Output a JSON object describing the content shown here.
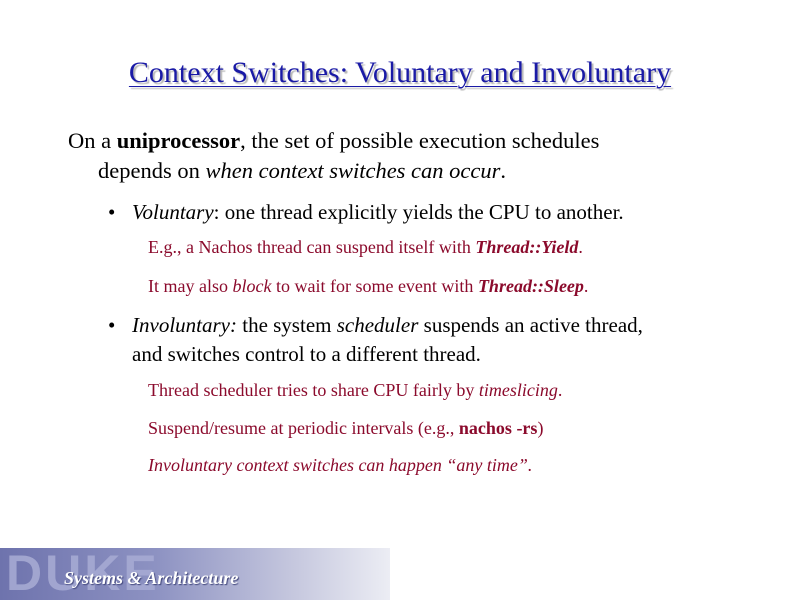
{
  "slide": {
    "title": "Context Switches: Voluntary and Involuntary",
    "intro": {
      "p1": "On a ",
      "p2": "uniprocessor",
      "p3": ", the set of possible execution schedules",
      "p4": "depends on ",
      "p5": "when context switches can occur",
      "p6": "."
    },
    "bullet1": {
      "marker": "•",
      "em": "Voluntary",
      "rest": ": one thread explicitly yields the CPU to another.",
      "sub1": {
        "a": "E.g., a Nachos thread can suspend itself with ",
        "b": "Thread::Yield",
        "c": "."
      },
      "sub2": {
        "a": "It  may also ",
        "b": "block",
        "c": " to wait for some event with ",
        "d": "Thread::Sleep",
        "e": "."
      }
    },
    "bullet2": {
      "marker": "•",
      "em": "Involuntary:",
      "t1": " the system ",
      "em2": "scheduler",
      "t2": " suspends an active thread,",
      "t3": "and switches control to a different thread.",
      "sub1": {
        "a": "Thread scheduler tries to share CPU fairly by ",
        "b": "timeslicing",
        "c": "."
      },
      "sub2": {
        "a": "Suspend/resume at periodic intervals (e.g., ",
        "b": "nachos -rs",
        "c": ")"
      },
      "sub3": "Involuntary context switches can happen “any time”."
    }
  },
  "footer": {
    "logo_text": "DUKE",
    "subtitle": "Systems & Architecture"
  },
  "colors": {
    "title": "#1a1aa6",
    "sub_text": "#8b0a2c"
  }
}
